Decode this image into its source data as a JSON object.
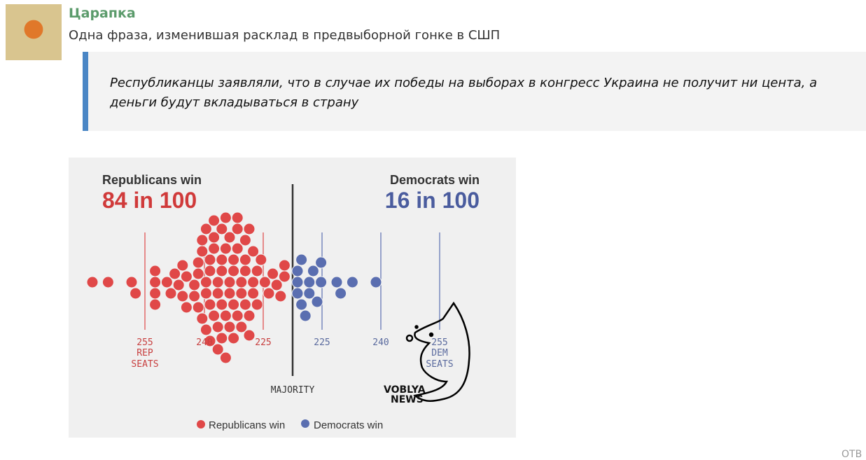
{
  "post": {
    "author": "Царапка",
    "subtitle": "Одна фраза, изменившая расклад в предвыборной гонке в СШП",
    "quote": "Республиканцы заявляли, что в случае их победы на выборах в конгресс Украина не получит ни цента, а деньги будут вкладываться в страну",
    "reply_partial": "ОТВ"
  },
  "chart": {
    "rep_title": "Republicans win",
    "rep_odds": "84 in 100",
    "dem_title": "Democrats win",
    "dem_odds": "16 in 100",
    "rep_ticks": [
      "255",
      "240",
      "225"
    ],
    "dem_ticks": [
      "225",
      "240",
      "255"
    ],
    "rep_unit": [
      "REP",
      "SEATS"
    ],
    "dem_unit": [
      "DEM",
      "SEATS"
    ],
    "majority": "MAJORITY",
    "watermark": "VOBLYA NEWS",
    "legend": [
      "Republicans win",
      "Democrats win"
    ],
    "colors": {
      "rep": "#e04848",
      "dem": "#5a6eb0",
      "rep_text": "#d03a3a",
      "dem_text": "#4a5c9e"
    },
    "rep_outcomes": [
      268,
      264,
      258,
      257,
      252,
      252,
      252,
      252,
      249,
      248,
      247,
      246,
      245,
      245,
      244,
      244,
      242,
      242,
      241,
      241,
      241,
      240,
      240,
      240,
      239,
      239,
      239,
      239,
      238,
      238,
      238,
      238,
      237,
      237,
      237,
      237,
      236,
      236,
      236,
      236,
      235,
      235,
      235,
      235,
      235,
      234,
      234,
      234,
      234,
      233,
      233,
      233,
      233,
      232,
      232,
      232,
      232,
      231,
      231,
      231,
      231,
      230,
      230,
      230,
      229,
      229,
      229,
      229,
      228,
      228,
      228,
      227,
      227,
      227,
      226,
      226,
      225,
      224,
      223,
      222,
      221,
      220,
      219,
      219
    ],
    "dem_outcomes": [
      218,
      218,
      218,
      219,
      219,
      220,
      221,
      221,
      222,
      223,
      224,
      224,
      228,
      229,
      232,
      238
    ]
  }
}
